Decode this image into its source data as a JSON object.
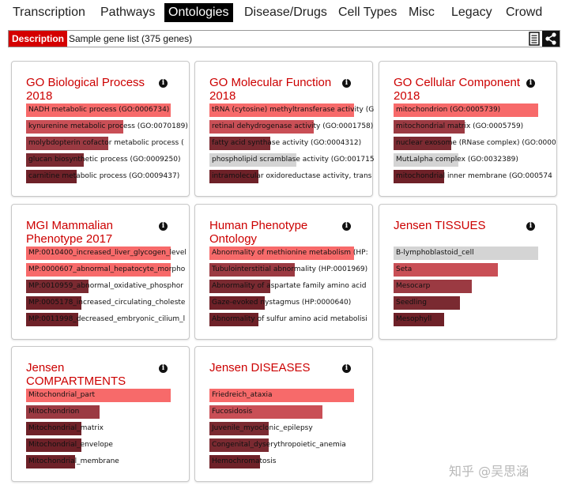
{
  "nav": {
    "items": [
      "Transcription",
      "Pathways",
      "Ontologies",
      "Disease/Drugs",
      "Cell Types",
      "Misc",
      "Legacy",
      "Crowd"
    ],
    "active": "Ontologies"
  },
  "description": {
    "label": "Description",
    "text": "Sample gene list (375 genes)",
    "doc_icon": "document-icon",
    "share_icon": "share-icon"
  },
  "colors": {
    "accent": "#d40000",
    "bar_strong": "#f76a6a",
    "bar_mid": "#c94f56",
    "bar_dark": "#7a2a31",
    "bar_darker": "#6e2128",
    "bar_gray": "#d4d4d4"
  },
  "cards": [
    {
      "title": "GO Biological Process 2018",
      "items": [
        {
          "label": "NADH metabolic process (GO:0006734)",
          "score": 1.0,
          "color": "#f76a6a"
        },
        {
          "label": "kynurenine metabolic process (GO:0070189)",
          "score": 0.67,
          "color": "#c94f56"
        },
        {
          "label": "molybdopterin cofactor metabolic process (",
          "score": 0.57,
          "color": "#9b3a42"
        },
        {
          "label": "glucan biosynthetic process (GO:0009250)",
          "score": 0.4,
          "color": "#7a2a31"
        },
        {
          "label": "carnitine metabolic process (GO:0009437)",
          "score": 0.35,
          "color": "#6e2128"
        }
      ]
    },
    {
      "title": "GO Molecular Function 2018",
      "items": [
        {
          "label": "tRNA (cytosine) methyltransferase activity (G",
          "score": 1.0,
          "color": "#f76a6a"
        },
        {
          "label": "retinal dehydrogenase activity (GO:0001758)",
          "score": 0.72,
          "color": "#c94f56"
        },
        {
          "label": "fatty acid synthase activity (GO:0004312)",
          "score": 0.42,
          "color": "#7a2a31"
        },
        {
          "label": "phospholipid scramblase activity (GO:001715",
          "score": 0.6,
          "color": "#d4d4d4"
        },
        {
          "label": "intramolecular oxidoreductase activity, trans",
          "score": 0.34,
          "color": "#6e2128"
        }
      ]
    },
    {
      "title": "GO Cellular Component 2018",
      "items": [
        {
          "label": "mitochondrion (GO:0005739)",
          "score": 1.0,
          "color": "#f76a6a"
        },
        {
          "label": "mitochondrial matrix (GO:0005759)",
          "score": 0.49,
          "color": "#9b3a42"
        },
        {
          "label": "nuclear exosome (RNase complex) (GO:0000",
          "score": 0.4,
          "color": "#7a2a31"
        },
        {
          "label": "MutLalpha complex (GO:0032389)",
          "score": 0.45,
          "color": "#d4d4d4"
        },
        {
          "label": "mitochondrial inner membrane (GO:000574",
          "score": 0.35,
          "color": "#6e2128"
        }
      ]
    },
    {
      "title": "MGI Mammalian Phenotype 2017",
      "items": [
        {
          "label": "MP:0010400_increased_liver_glycogen_level",
          "score": 1.0,
          "color": "#f76a6a"
        },
        {
          "label": "MP:0000607_abnormal_hepatocyte_morpho",
          "score": 1.0,
          "color": "#f76a6a"
        },
        {
          "label": "MP:0010959_abnormal_oxidative_phosphor",
          "score": 0.43,
          "color": "#7a2a31"
        },
        {
          "label": "MP:0005178_increased_circulating_choleste",
          "score": 0.38,
          "color": "#6e2128"
        },
        {
          "label": "MP:0011998_decreased_embryonic_cilium_l",
          "score": 0.36,
          "color": "#6e2128"
        }
      ]
    },
    {
      "title": "Human Phenotype Ontology",
      "items": [
        {
          "label": "Abnormality of methionine metabolism (HP:",
          "score": 1.0,
          "color": "#f76a6a"
        },
        {
          "label": "Tubulointerstitial abnormality (HP:0001969)",
          "score": 0.59,
          "color": "#9b3a42"
        },
        {
          "label": "Abnormality of aspartate family amino acid",
          "score": 0.42,
          "color": "#7a2a31"
        },
        {
          "label": "Gaze-evoked nystagmus (HP:0000640)",
          "score": 0.38,
          "color": "#6e2128"
        },
        {
          "label": "Abnormality of sulfur amino acid metabolisi",
          "score": 0.34,
          "color": "#6e2128"
        }
      ]
    },
    {
      "title": "Jensen TISSUES",
      "items": [
        {
          "label": "B-lymphoblastoid_cell",
          "score": 1.0,
          "color": "#d4d4d4"
        },
        {
          "label": "Seta",
          "score": 0.72,
          "color": "#c94f56"
        },
        {
          "label": "Mesocarp",
          "score": 0.54,
          "color": "#9b3a42"
        },
        {
          "label": "Seedling",
          "score": 0.46,
          "color": "#7a2a31"
        },
        {
          "label": "Mesophyll",
          "score": 0.35,
          "color": "#6e2128"
        }
      ]
    },
    {
      "title": "Jensen COMPARTMENTS",
      "items": [
        {
          "label": "Mitochondrial_part",
          "score": 1.0,
          "color": "#f76a6a"
        },
        {
          "label": "Mitochondrion",
          "score": 0.51,
          "color": "#9b3a42"
        },
        {
          "label": "Mitochondrial_matrix",
          "score": 0.38,
          "color": "#6e2128"
        },
        {
          "label": "Mitochondrial_envelope",
          "score": 0.38,
          "color": "#6e2128"
        },
        {
          "label": "Mitochondrial_membrane",
          "score": 0.34,
          "color": "#6e2128"
        }
      ]
    },
    {
      "title": "Jensen DISEASES",
      "items": [
        {
          "label": "Friedreich_ataxia",
          "score": 1.0,
          "color": "#f76a6a"
        },
        {
          "label": "Fucosidosis",
          "score": 0.78,
          "color": "#c94f56"
        },
        {
          "label": "Juvenile_myoclonic_epilepsy",
          "score": 0.41,
          "color": "#7a2a31"
        },
        {
          "label": "Congenital_dyserythropoietic_anemia",
          "score": 0.41,
          "color": "#7a2a31"
        },
        {
          "label": "Hemochromatosis",
          "score": 0.35,
          "color": "#6e2128"
        }
      ]
    }
  ],
  "watermark": "知乎 @吴思涵"
}
